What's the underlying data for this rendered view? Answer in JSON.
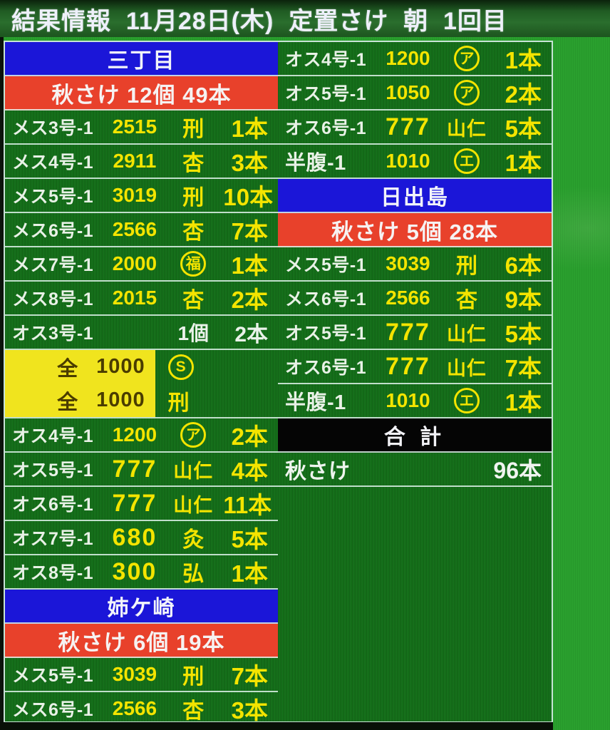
{
  "title": "結果情報  11月28日(木)  定置さけ  朝  1回目",
  "colors": {
    "background_green": "#2aa02e",
    "table_green": "#146e19",
    "header_blue": "#1b16d8",
    "header_red": "#e8412b",
    "highlight_yellow": "#f0e41e",
    "text_yellow": "#f4e400",
    "text_white": "#eef4ee",
    "total_black": "#050505"
  },
  "left_column": {
    "blocks": [
      {
        "type": "section",
        "label": "三丁目"
      },
      {
        "type": "summary",
        "label": "秋さけ 12個 49本"
      },
      {
        "type": "row",
        "label": "メス3号-1",
        "price": "2515",
        "mark": {
          "kind": "text",
          "glyph": "刑"
        },
        "count": "1本"
      },
      {
        "type": "row",
        "label": "メス4号-1",
        "price": "2911",
        "mark": {
          "kind": "text",
          "glyph": "杏"
        },
        "count": "3本"
      },
      {
        "type": "row",
        "label": "メス5号-1",
        "price": "3019",
        "mark": {
          "kind": "text",
          "glyph": "刑"
        },
        "count": "10本"
      },
      {
        "type": "row",
        "label": "メス6号-1",
        "price": "2566",
        "mark": {
          "kind": "text",
          "glyph": "杏"
        },
        "count": "7本"
      },
      {
        "type": "row",
        "label": "メス7号-1",
        "price": "2000",
        "mark": {
          "kind": "circle",
          "glyph": "福"
        },
        "count": "1本"
      },
      {
        "type": "row",
        "label": "メス8号-1",
        "price": "2015",
        "mark": {
          "kind": "text",
          "glyph": "杏"
        },
        "count": "2本"
      },
      {
        "type": "lot_row",
        "label": "オス3号-1",
        "pieces": "1個",
        "count": "2本"
      },
      {
        "type": "highlight",
        "lines": [
          {
            "prefix": "全",
            "price": "1000",
            "mark": {
              "kind": "circle",
              "glyph": "S"
            }
          },
          {
            "prefix": "全",
            "price": "1000",
            "mark": {
              "kind": "text",
              "glyph": "刑"
            }
          }
        ]
      },
      {
        "type": "row",
        "label": "オス4号-1",
        "price": "1200",
        "mark": {
          "kind": "circle",
          "glyph": "ア"
        },
        "count": "2本"
      },
      {
        "type": "row",
        "label": "オス5号-1",
        "price": "777",
        "mark": {
          "kind": "text",
          "glyph": "山仁"
        },
        "count": "4本"
      },
      {
        "type": "row",
        "label": "オス6号-1",
        "price": "777",
        "mark": {
          "kind": "text",
          "glyph": "山仁"
        },
        "count": "11本"
      },
      {
        "type": "row",
        "label": "オス7号-1",
        "price": "680",
        "mark": {
          "kind": "text",
          "glyph": "灸"
        },
        "count": "5本"
      },
      {
        "type": "row",
        "label": "オス8号-1",
        "price": "300",
        "mark": {
          "kind": "text",
          "glyph": "弘"
        },
        "count": "1本"
      },
      {
        "type": "section",
        "label": "姉ケ崎"
      },
      {
        "type": "summary",
        "label": "秋さけ 6個 19本"
      },
      {
        "type": "row",
        "label": "メス5号-1",
        "price": "3039",
        "mark": {
          "kind": "text",
          "glyph": "刑"
        },
        "count": "7本"
      },
      {
        "type": "row",
        "label": "メス6号-1",
        "price": "2566",
        "mark": {
          "kind": "text",
          "glyph": "杏"
        },
        "count": "3本"
      }
    ]
  },
  "right_column": {
    "blocks": [
      {
        "type": "row",
        "label": "オス4号-1",
        "price": "1200",
        "mark": {
          "kind": "circle",
          "glyph": "ア"
        },
        "count": "1本"
      },
      {
        "type": "row",
        "label": "オス5号-1",
        "price": "1050",
        "mark": {
          "kind": "circle",
          "glyph": "ア"
        },
        "count": "2本"
      },
      {
        "type": "row",
        "label": "オス6号-1",
        "price": "777",
        "mark": {
          "kind": "text",
          "glyph": "山仁"
        },
        "count": "5本"
      },
      {
        "type": "row",
        "label": "半腹-1",
        "price": "1010",
        "mark": {
          "kind": "circle",
          "glyph": "エ"
        },
        "count": "1本"
      },
      {
        "type": "section",
        "label": "日出島"
      },
      {
        "type": "summary",
        "label": "秋さけ 5個 28本"
      },
      {
        "type": "row",
        "label": "メス5号-1",
        "price": "3039",
        "mark": {
          "kind": "text",
          "glyph": "刑"
        },
        "count": "6本"
      },
      {
        "type": "row",
        "label": "メス6号-1",
        "price": "2566",
        "mark": {
          "kind": "text",
          "glyph": "杏"
        },
        "count": "9本"
      },
      {
        "type": "row",
        "label": "オス5号-1",
        "price": "777",
        "mark": {
          "kind": "text",
          "glyph": "山仁"
        },
        "count": "5本"
      },
      {
        "type": "row",
        "label": "オス6号-1",
        "price": "777",
        "mark": {
          "kind": "text",
          "glyph": "山仁"
        },
        "count": "7本"
      },
      {
        "type": "row",
        "label": "半腹-1",
        "price": "1010",
        "mark": {
          "kind": "circle",
          "glyph": "エ"
        },
        "count": "1本"
      },
      {
        "type": "total_header",
        "label": "合 計"
      },
      {
        "type": "total_row",
        "label": "秋さけ",
        "count": "96本"
      },
      {
        "type": "filler"
      }
    ]
  }
}
